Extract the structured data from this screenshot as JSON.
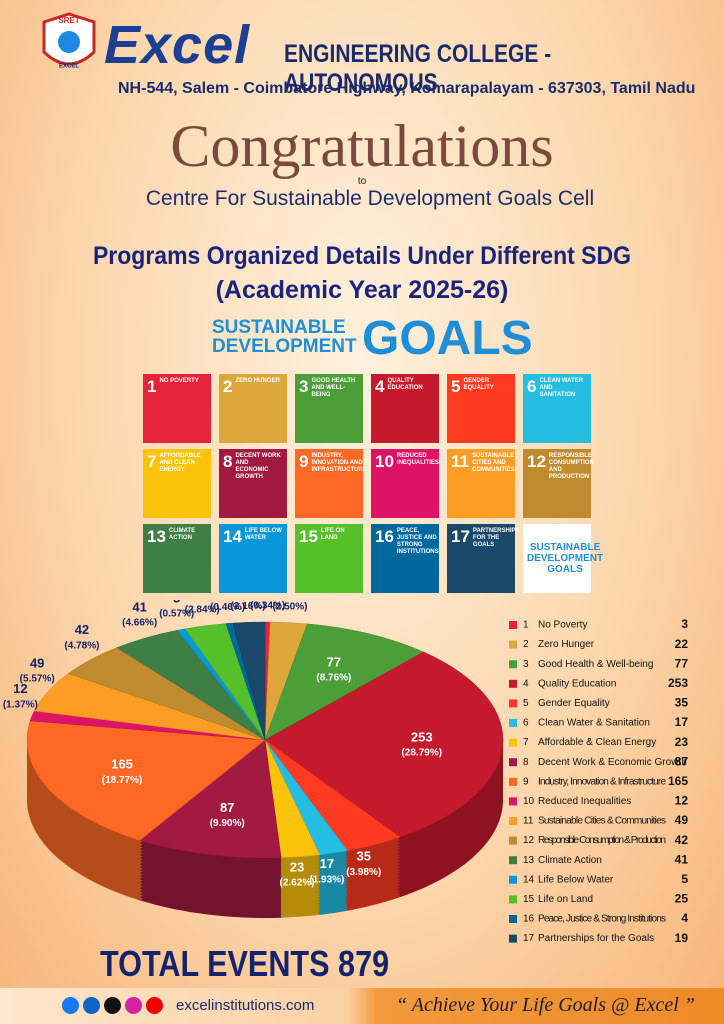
{
  "header": {
    "logo_text": "SRET",
    "logo_sub": "EXCEL",
    "brand": "Excel",
    "college": "ENGINEERING COLLEGE - AUTONOMOUS",
    "address": "NH-544, Salem - Coimbatore Highway, Komarapalayam - 637303, Tamil Nadu"
  },
  "congrats": {
    "title": "Congratulations",
    "to": "to",
    "recipient": "Centre For Sustainable Development Goals Cell"
  },
  "heading": {
    "line1": "Programs Organized Details Under Different SDG",
    "line2": "(Academic Year 2025-26)"
  },
  "sdg_logo": {
    "line1": "SUSTAINABLE",
    "line2": "DEVELOPMENT",
    "goals": "GOALS"
  },
  "sdg_tiles": [
    {
      "number": 1,
      "label": "NO POVERTY"
    },
    {
      "number": 2,
      "label": "ZERO HUNGER"
    },
    {
      "number": 3,
      "label": "GOOD HEALTH AND WELL-BEING"
    },
    {
      "number": 4,
      "label": "QUALITY EDUCATION"
    },
    {
      "number": 5,
      "label": "GENDER EQUALITY"
    },
    {
      "number": 6,
      "label": "CLEAN WATER AND SANITATION"
    },
    {
      "number": 7,
      "label": "AFFORDABLE AND CLEAN ENERGY"
    },
    {
      "number": 8,
      "label": "DECENT WORK AND ECONOMIC GROWTH"
    },
    {
      "number": 9,
      "label": "INDUSTRY, INNOVATION AND INFRASTRUCTURE"
    },
    {
      "number": 10,
      "label": "REDUCED INEQUALITIES"
    },
    {
      "number": 11,
      "label": "SUSTAINABLE CITIES AND COMMUNITIES"
    },
    {
      "number": 12,
      "label": "RESPONSIBLE CONSUMPTION AND PRODUCTION"
    },
    {
      "number": 13,
      "label": "CLIMATE ACTION"
    },
    {
      "number": 14,
      "label": "LIFE BELOW WATER"
    },
    {
      "number": 15,
      "label": "LIFE ON LAND"
    },
    {
      "number": 16,
      "label": "PEACE, JUSTICE AND STRONG INSTITUTIONS"
    },
    {
      "number": 17,
      "label": "PARTNERSHIPS FOR THE GOALS"
    }
  ],
  "sdg_tile_final": "SUSTAINABLE DEVELOPMENT GOALS",
  "chart_data": {
    "type": "pie",
    "goal_numbers": [
      1,
      2,
      3,
      4,
      5,
      6,
      7,
      8,
      9,
      10,
      11,
      12,
      13,
      14,
      15,
      16,
      17
    ],
    "categories": [
      "No Poverty",
      "Zero Hunger",
      "Good Health & Well-being",
      "Quality Education",
      "Gender Equality",
      "Clean Water & Sanitation",
      "Affordable & Clean Energy",
      "Decent Work & Economic Growth",
      "Industry, Innovation & Infrastructure",
      "Reduced Inequalities",
      "Sustainable Cities & Communities",
      "Responsible Consumption & Production",
      "Climate Action",
      "Life Below Water",
      "Life on Land",
      "Peace, Justice & Strong Institutions",
      "Partnerships for the Goals"
    ],
    "values": [
      3,
      22,
      77,
      253,
      35,
      17,
      23,
      87,
      165,
      12,
      49,
      42,
      41,
      5,
      25,
      4,
      19
    ],
    "percent_labels": [
      "(0.34%)",
      "(2.50%)",
      "(8.76%)",
      "(28.79%)",
      "(3.98%)",
      "(1.93%)",
      "(2.62%)",
      "(9.90%)",
      "(18.77%)",
      "(1.37%)",
      "(5.57%)",
      "(4.78%)",
      "(4.66%)",
      "(0.57%)",
      "(2.84%)",
      "(0.46%)",
      "(2.16%)"
    ],
    "colors": [
      "#E5243B",
      "#DDA63A",
      "#4C9F38",
      "#C5192D",
      "#FF3A21",
      "#26BDE2",
      "#FCC30B",
      "#A21942",
      "#FD6925",
      "#DD1367",
      "#FD9D24",
      "#BF8B2E",
      "#3F7E44",
      "#0A97D9",
      "#56C02B",
      "#00689D",
      "#19486A"
    ]
  },
  "total": {
    "label": "TOTAL EVENTS",
    "value": 879
  },
  "footer": {
    "website": "excelinstitutions.com",
    "quote": "“ Achieve Your Life Goals @ Excel ”"
  }
}
